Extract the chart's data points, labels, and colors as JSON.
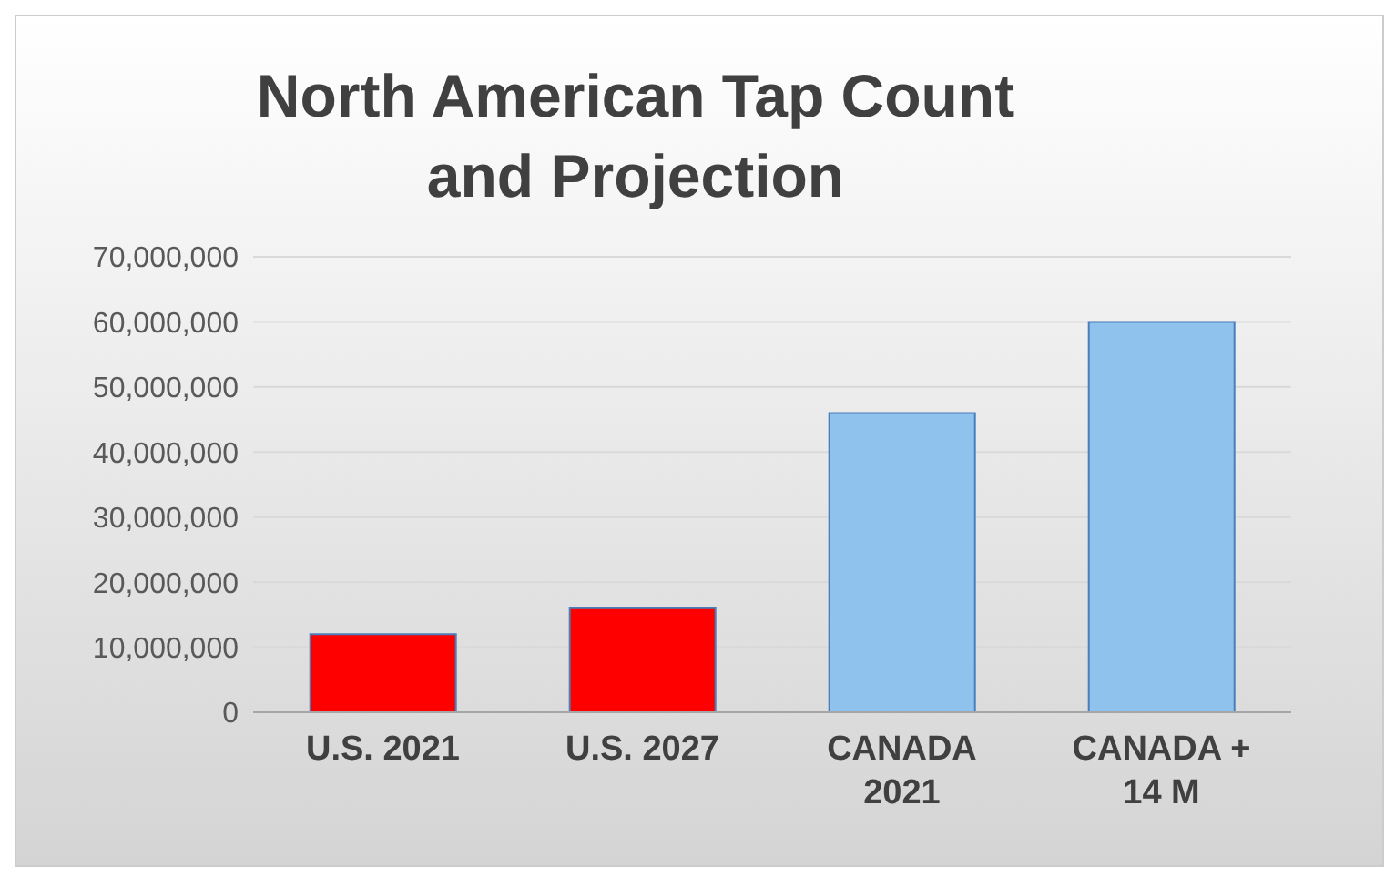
{
  "chart_data": {
    "type": "bar",
    "title": "North American Tap Count and Projection",
    "categories": [
      "U.S. 2021",
      "U.S. 2027",
      "CANADA 2021",
      "CANADA + 14 M"
    ],
    "values": [
      12000000,
      16000000,
      46000000,
      60000000
    ],
    "colors": [
      "#ff0000",
      "#ff0000",
      "#8fc3ee",
      "#8fc3ee"
    ],
    "ylim": [
      0,
      70000000
    ],
    "yticks": [
      0,
      {
        "value": 10000000,
        "label": "10,000,000"
      },
      {
        "value": 20000000,
        "label": "20,000,000"
      },
      {
        "value": 30000000,
        "label": "30,000,000"
      },
      {
        "value": 40000000,
        "label": "40,000,000"
      },
      {
        "value": 50000000,
        "label": "50,000,000"
      },
      {
        "value": 60000000,
        "label": "60,000,000"
      },
      {
        "value": 70000000,
        "label": "70,000,000"
      }
    ],
    "grid": "y"
  }
}
